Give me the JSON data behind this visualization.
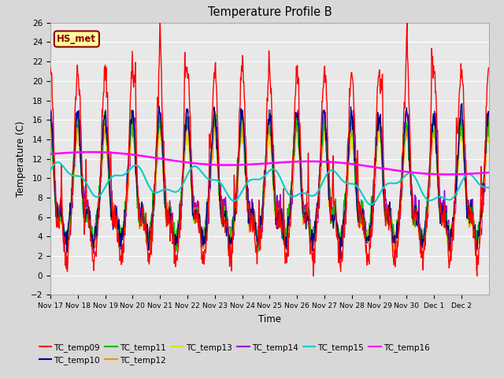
{
  "title": "Temperature Profile B",
  "xlabel": "Time",
  "ylabel": "Temperature (C)",
  "ylim": [
    -2,
    26
  ],
  "yticks": [
    -2,
    0,
    2,
    4,
    6,
    8,
    10,
    12,
    14,
    16,
    18,
    20,
    22,
    24,
    26
  ],
  "annotation_text": "HS_met",
  "annotation_color": "#8B0000",
  "annotation_bg": "#FFFF99",
  "bg_color": "#D8D8D8",
  "plot_bg": "#E8E8E8",
  "grid_color": "#FFFFFF",
  "series": {
    "TC_temp09": {
      "color": "#FF0000",
      "lw": 1.0,
      "zorder": 8
    },
    "TC_temp10": {
      "color": "#00008B",
      "lw": 1.0,
      "zorder": 7
    },
    "TC_temp11": {
      "color": "#00BB00",
      "lw": 1.0,
      "zorder": 6
    },
    "TC_temp12": {
      "color": "#FF8C00",
      "lw": 1.0,
      "zorder": 5
    },
    "TC_temp13": {
      "color": "#DDDD00",
      "lw": 1.0,
      "zorder": 4
    },
    "TC_temp14": {
      "color": "#9400D3",
      "lw": 1.0,
      "zorder": 3
    },
    "TC_temp15": {
      "color": "#00CCCC",
      "lw": 1.5,
      "zorder": 9
    },
    "TC_temp16": {
      "color": "#FF00FF",
      "lw": 1.8,
      "zorder": 10
    }
  },
  "xtick_labels": [
    "Nov 17",
    "Nov 18",
    "Nov 19",
    "Nov 20",
    "Nov 21",
    "Nov 22",
    "Nov 23",
    "Nov 24",
    "Nov 25",
    "Nov 26",
    "Nov 27",
    "Nov 28",
    "Nov 29",
    "Nov 30",
    "Dec 1",
    "Dec 2"
  ],
  "legend_order": [
    "TC_temp09",
    "TC_temp10",
    "TC_temp11",
    "TC_temp12",
    "TC_temp13",
    "TC_temp14",
    "TC_temp15",
    "TC_temp16"
  ],
  "n_points": 960,
  "end_day": 16.0
}
